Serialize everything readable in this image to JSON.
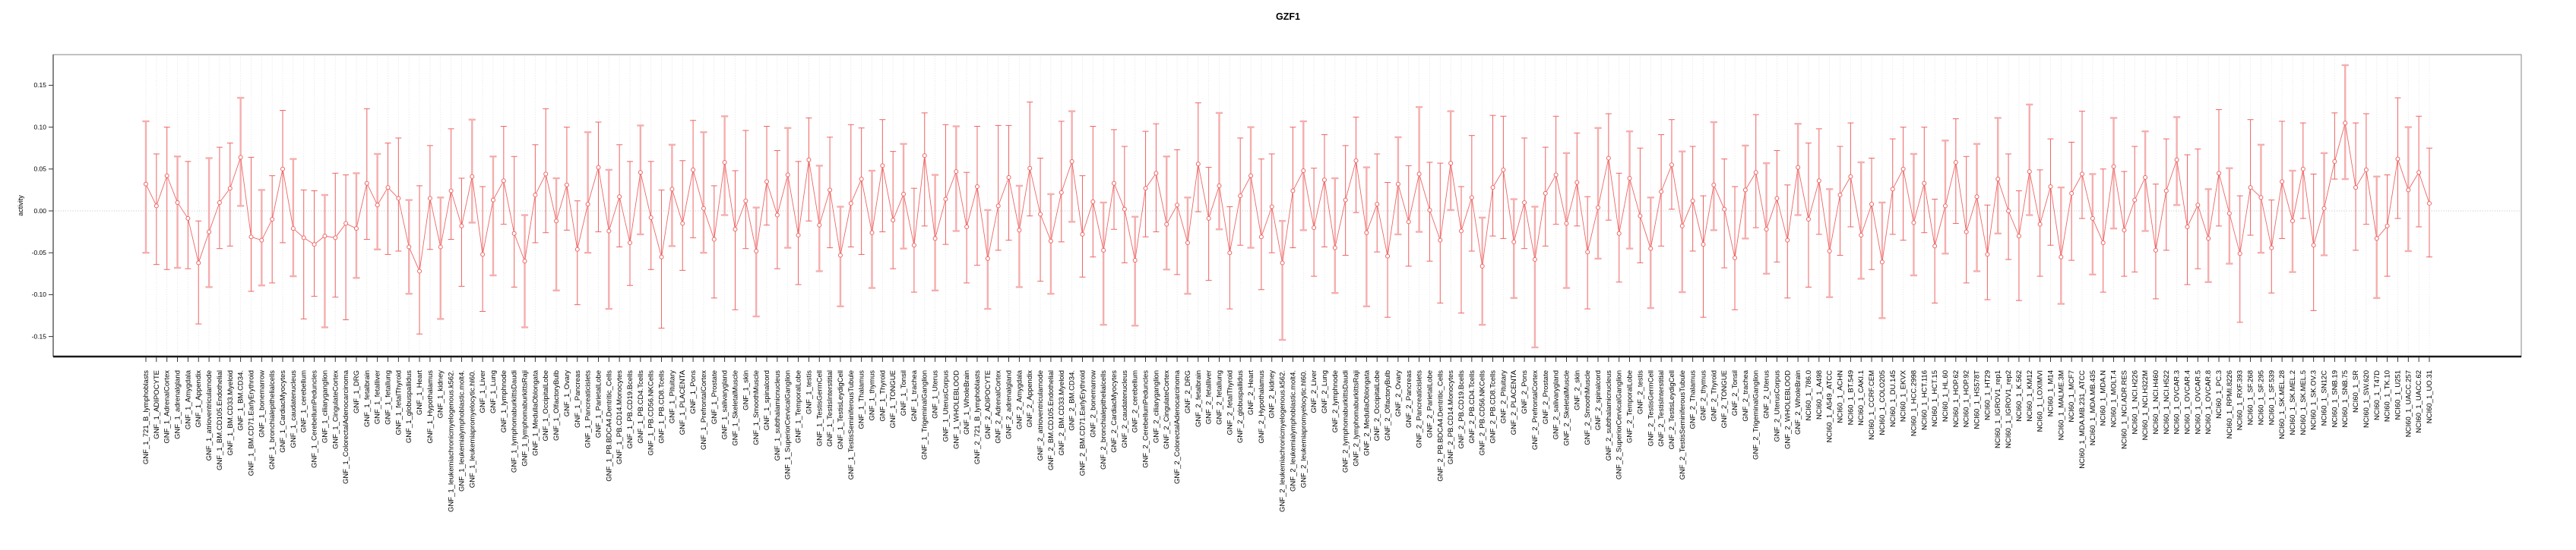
{
  "title": "GZF1",
  "chart_data": {
    "type": "line",
    "subtype": "points-with-error-bars",
    "title": "GZF1",
    "xlabel": "",
    "ylabel": "activity",
    "ylim": [
      -0.175,
      0.187
    ],
    "ytick_labels": [
      "0.15",
      "0.10",
      "0.05",
      "0.00",
      "-0.05",
      "-0.10",
      "-0.15"
    ],
    "ytick_values": [
      0.15,
      0.1,
      0.05,
      0.0,
      -0.05,
      -0.1,
      -0.15
    ],
    "grid": "vertical dotted gridline per category; horizontal dotted line at 0",
    "legend": "none",
    "point_color": "#ee6565",
    "line_color": "#ee6565",
    "errorbar_colors": [
      "#ee6565",
      "#f5aeae"
    ],
    "gridline_color": "#dcdcdc",
    "zeroline_color": "#c0c0c0",
    "categories": [
      "GNF_1_721_B_lymphoblasts",
      "GNF_1_ADIPOCYTE",
      "GNF_1_AdrenalCortex",
      "GNF_1_adrenalgland",
      "GNF_1_Amygdala",
      "GNF_1_Appendix",
      "GNF_1_atrioventricularnode",
      "GNF_1_BM.CD105.Endothelial",
      "GNF_1_BM.CD33.Myeloid",
      "GNF_1_BM.CD34.",
      "GNF_1_BM.CD71.EarlyErythroid",
      "GNF_1_bonemarrow",
      "GNF_1_bronchialepithelialcells",
      "GNF_1_CardiacMyocytes",
      "GNF_1_caudatenucleus",
      "GNF_1_cerebellum",
      "GNF_1_CerebellumPeduncles",
      "GNF_1_ciliaryganglion",
      "GNF_1_CingulateCortex",
      "GNF_1_ColorectalAdenocarcinoma",
      "GNF_1_DRG",
      "GNF_1_fetalbrain",
      "GNF_1_fetalliver",
      "GNF_1_fetallung",
      "GNF_1_fetalThyroid",
      "GNF_1_globuspallidus",
      "GNF_1_Heart",
      "GNF_1_Hypothalamus",
      "GNF_1_kidney",
      "GNF_1_leukemiachronicmyelogenous.k562.",
      "GNF_1_leukemialymphoblastic.molt4.",
      "GNF_1_leukemiapromyelocytic.hl60.",
      "GNF_1_Liver",
      "GNF_1_Lung",
      "GNF_1_lymphnode",
      "GNF_1_lymphomaburkittsDaudi",
      "GNF_1_lymphomaburkittsRaji",
      "GNF_1_MedullaOblongata",
      "GNF_1_OccipitalLobe",
      "GNF_1_OlfactoryBulb",
      "GNF_1_Ovary",
      "GNF_1_Pancreas",
      "GNF_1_Pancreaticislets",
      "GNF_1_ParietalLobe",
      "GNF_1_PB.BDCA4.Dentritic_Cells",
      "GNF_1_PB.CD14.Monocytes",
      "GNF_1_PB.CD19.Bcells",
      "GNF_1_PB.CD4.Tcells",
      "GNF_1_PB.CD56.NKCells",
      "GNF_1_PB.CD8.Tcells",
      "GNF_1_Pituitary",
      "GNF_1_PLACENTA",
      "GNF_1_Pons",
      "GNF_1_PrefrontalCortex",
      "GNF_1_Prostate",
      "GNF_1_salivarygland",
      "GNF_1_SkeletalMuscle",
      "GNF_1_skin",
      "GNF_1_SmoothMuscle",
      "GNF_1_spinalcord",
      "GNF_1_subthalamicnucleus",
      "GNF_1_SuperiorCervicalGanglion",
      "GNF_1_TemporalLobe",
      "GNF_1_testis",
      "GNF_1_TestisGermCell",
      "GNF_1_TestisInterstitial",
      "GNF_1_TestisLeydigCell",
      "GNF_1_TestisSeminiferousTubule",
      "GNF_1_Thalamus",
      "GNF_1_thymus",
      "GNF_1_Thyroid",
      "GNF_1_TONGUE",
      "GNF_1_Tonsil",
      "GNF_1_trachea",
      "GNF_1_TrigeminalGanglion",
      "GNF_1_Uterus",
      "GNF_1_UterusCorpus",
      "GNF_1_WHOLEBLOOD",
      "GNF_1_WholeBrain",
      "GNF_2_721_B_lymphoblasts",
      "GNF_2_ADIPOCYTE",
      "GNF_2_AdrenalCortex",
      "GNF_2_adrenalgland",
      "GNF_2_Amygdala",
      "GNF_2_Appendix",
      "GNF_2_atrioventricularnode",
      "GNF_2_BM.CD105.Endothelial",
      "GNF_2_BM.CD33.Myeloid",
      "GNF_2_BM.CD34.",
      "GNF_2_BM.CD71.EarlyErythroid",
      "GNF_2_bonemarrow",
      "GNF_2_bronchialepithelialcells",
      "GNF_2_CardiacMyocytes",
      "GNF_2_caudatenucleus",
      "GNF_2_cerebellum",
      "GNF_2_CerebellumPeduncles",
      "GNF_2_ciliaryganglion",
      "GNF_2_CingulateCortex",
      "GNF_2_ColorectalAdenocarcinoma",
      "GNF_2_DRG",
      "GNF_2_fetalbrain",
      "GNF_2_fetalliver",
      "GNF_2_fetallung",
      "GNF_2_fetalThyroid",
      "GNF_2_globuspallidus",
      "GNF_2_Heart",
      "GNF_2_Hypothalamus",
      "GNF_2_kidney",
      "GNF_2_leukemiachronicmyelogenous.k562.",
      "GNF_2_leukemialymphoblastic.molt4.",
      "GNF_2_leukemiapromyelocytic.hl60.",
      "GNF_2_Liver",
      "GNF_2_Lung",
      "GNF_2_lymphnode",
      "GNF_2_lymphomaburkittsDaudi",
      "GNF_2_lymphomaburkittsRaji",
      "GNF_2_MedullaOblongata",
      "GNF_2_OccipitalLobe",
      "GNF_2_OlfactoryBulb",
      "GNF_2_Ovary",
      "GNF_2_Pancreas",
      "GNF_2_Pancreaticislets",
      "GNF_2_ParietalLobe",
      "GNF_2_PB.BDCA4.Dentritic_Cells",
      "GNF_2_PB.CD14.Monocytes",
      "GNF_2_PB.CD19.Bcells",
      "GNF_2_PB.CD4.Tcells",
      "GNF_2_PB.CD56.NKCells",
      "GNF_2_PB.CD8.Tcells",
      "GNF_2_Pituitary",
      "GNF_2_PLACENTA",
      "GNF_2_Pons",
      "GNF_2_PrefrontalCortex",
      "GNF_2_Prostate",
      "GNF_2_salivarygland",
      "GNF_2_SkeletalMuscle",
      "GNF_2_skin",
      "GNF_2_SmoothMuscle",
      "GNF_2_spinalcord",
      "GNF_2_subthalamicnucleus",
      "GNF_2_SuperiorCervicalGanglion",
      "GNF_2_TemporalLobe",
      "GNF_2_testis",
      "GNF_2_TestisGermCell",
      "GNF_2_TestisInterstitial",
      "GNF_2_TestisLeydigCell",
      "GNF_2_TestisSeminiferousTubule",
      "GNF_2_Thalamus",
      "GNF_2_thymus",
      "GNF_2_Thyroid",
      "GNF_2_TONGUE",
      "GNF_2_Tonsil",
      "GNF_2_trachea",
      "GNF_2_TrigeminalGanglion",
      "GNF_2_Uterus",
      "GNF_2_UterusCorpus",
      "GNF_2_WHOLEBLOOD",
      "GNF_2_WholeBrain",
      "NCI60_1_786.0",
      "NCI60_1_A498",
      "NCI60_1_A549_ATCC",
      "NCI60_1_ACHN",
      "NCI60_1_BT.549",
      "NCI60_1_CAKI.1",
      "NCI60_1_CCRF.CEM",
      "NCI60_1_COLO205",
      "NCI60_1_DU.145",
      "NCI60_1_EKVX",
      "NCI60_1_HCC.2998",
      "NCI60_1_HCT.116",
      "NCI60_1_HCT.15",
      "NCI60_1_HL.60",
      "NCI60_1_HOP.62",
      "NCI60_1_HOP.92",
      "NCI60_1_HS578T",
      "NCI60_1_HT29",
      "NCI60_1_IGROV1_rep1",
      "NCI60_1_IGROV1_rep2",
      "NCI60_1_K.562",
      "NCI60_1_KM12",
      "NCI60_1_LOXIMVI",
      "NCI60_1_M14",
      "NCI60_1_MALME.3M",
      "NCI60_1_MCF7",
      "NCI60_1_MDA.MB.231_ATCC",
      "NCI60_1_MDA.MB.435",
      "NCI60_1_MDA.N",
      "NCI60_1_MOLT.4",
      "NCI60_1_NCI.ADR.RES",
      "NCI60_1_NCI.H226",
      "NCI60_1_NCI.H322M",
      "NCI60_1_NCI.H460",
      "NCI60_1_NCI.H522",
      "NCI60_1_OVCAR.3",
      "NCI60_1_OVCAR.4",
      "NCI60_1_OVCAR.5",
      "NCI60_1_OVCAR.8",
      "NCI60_1_PC.3",
      "NCI60_1_RPMI.8226",
      "NCI60_1_RXF.393",
      "NCI60_1_SF.268",
      "NCI60_1_SF.295",
      "NCI60_1_SF.539",
      "NCI60_1_SK.MEL.28",
      "NCI60_1_SK.MEL.2",
      "NCI60_1_SK.MEL.5",
      "NCI60_1_SK.OV.3",
      "NCI60_1_SN12C",
      "NCI60_1_SNB.19",
      "NCI60_1_SNB.75",
      "NCI60_1_SR",
      "NCI60_1_SW.620",
      "NCI60_1_T47D",
      "NCI60_1_TK.10",
      "NCI60_1_U251",
      "NCI60_1_UACC.257",
      "NCI60_1_UACC.62",
      "NCI60_1_UO.31"
    ],
    "series": [
      {
        "name": "activity",
        "values": [
          0.032,
          0.006,
          0.042,
          0.01,
          -0.009,
          -0.062,
          -0.025,
          0.01,
          0.027,
          0.064,
          -0.031,
          -0.035,
          -0.01,
          0.05,
          -0.021,
          -0.032,
          -0.04,
          -0.03,
          -0.032,
          -0.015,
          -0.021,
          0.033,
          0.007,
          0.028,
          0.015,
          -0.043,
          -0.072,
          0.015,
          -0.043,
          0.024,
          -0.018,
          0.041,
          -0.052,
          0.013,
          0.036,
          -0.027,
          -0.06,
          0.019,
          0.044,
          -0.012,
          0.031,
          -0.046,
          0.008,
          0.052,
          -0.024,
          0.017,
          -0.038,
          0.046,
          -0.008,
          -0.055,
          0.026,
          -0.015,
          0.049,
          0.003,
          -0.034,
          0.058,
          -0.022,
          0.012,
          -0.048,
          0.035,
          -0.005,
          0.043,
          -0.029,
          0.061,
          -0.017,
          0.025,
          -0.053,
          0.009,
          0.038,
          -0.026,
          0.054,
          -0.011,
          0.02,
          -0.041,
          0.066,
          -0.033,
          0.014,
          0.047,
          -0.019,
          0.029,
          -0.057,
          0.006,
          0.04,
          -0.023,
          0.051,
          -0.004,
          -0.036,
          0.022,
          0.059,
          -0.028,
          0.011,
          -0.047,
          0.033,
          0.002,
          -0.059,
          0.027,
          0.045,
          -0.016,
          0.007,
          -0.038,
          0.056,
          -0.009,
          0.03,
          -0.05,
          0.018,
          0.042,
          -0.031,
          0.005,
          -0.062,
          0.024,
          0.048,
          -0.02,
          0.037,
          -0.044,
          0.013,
          0.06,
          -0.026,
          0.008,
          -0.054,
          0.032,
          -0.013,
          0.044,
          0.001,
          -0.035,
          0.057,
          -0.024,
          0.016,
          -0.066,
          0.028,
          0.049,
          -0.037,
          0.01,
          -0.058,
          0.021,
          0.043,
          -0.015,
          0.034,
          -0.049,
          0.004,
          0.063,
          -0.027,
          0.039,
          -0.006,
          -0.045,
          0.023,
          0.055,
          -0.018,
          0.012,
          -0.04,
          0.031,
          0.002,
          -0.056,
          0.025,
          0.046,
          -0.022,
          0.015,
          -0.035,
          0.052,
          -0.01,
          0.036,
          -0.048,
          0.019,
          0.041,
          -0.029,
          0.008,
          -0.061,
          0.026,
          0.05,
          -0.014,
          0.033,
          -0.042,
          0.006,
          0.058,
          -0.025,
          0.017,
          -0.052,
          0.038,
          0.0,
          -0.03,
          0.047,
          -0.016,
          0.029,
          -0.055,
          0.021,
          0.044,
          -0.009,
          -0.038,
          0.053,
          -0.023,
          0.013,
          0.04,
          -0.047,
          0.024,
          0.061,
          -0.019,
          0.007,
          -0.033,
          0.045,
          -0.003,
          -0.051,
          0.028,
          0.016,
          -0.044,
          0.035,
          -0.012,
          0.05,
          -0.041,
          0.003,
          0.059,
          0.105,
          0.028,
          0.049,
          -0.033,
          -0.018,
          0.062,
          0.025,
          0.046,
          0.009
        ],
        "err_up": [
          0.075,
          0.062,
          0.058,
          0.055,
          0.068,
          0.05,
          0.088,
          0.066,
          0.054,
          0.071,
          0.095,
          0.06,
          0.052,
          0.07,
          0.083,
          0.057,
          0.064,
          0.049,
          0.077,
          0.058,
          0.066,
          0.089,
          0.061,
          0.053,
          0.072,
          0.056,
          0.102,
          0.063,
          0.059,
          0.074,
          0.057,
          0.068,
          0.081,
          0.052,
          0.065,
          0.092,
          0.055,
          0.06,
          0.078,
          0.051,
          0.069,
          0.058,
          0.086,
          0.054,
          0.073,
          0.062,
          0.097,
          0.056,
          0.067,
          0.08,
          0.053,
          0.075,
          0.059,
          0.091,
          0.064,
          0.055,
          0.07,
          0.084,
          0.052,
          0.066,
          0.077,
          0.056,
          0.088,
          0.05,
          0.071,
          0.063,
          0.058,
          0.094,
          0.061,
          0.074,
          0.055,
          0.082,
          0.06,
          0.068,
          0.051,
          0.076,
          0.089,
          0.054,
          0.065,
          0.072,
          0.058,
          0.096,
          0.062,
          0.053,
          0.079,
          0.067,
          0.056,
          0.085,
          0.06,
          0.07,
          0.09,
          0.057,
          0.064,
          0.075,
          0.052,
          0.068,
          0.059,
          0.081,
          0.066,
          0.054,
          0.073,
          0.061,
          0.087,
          0.055,
          0.069,
          0.058,
          0.093,
          0.063,
          0.05,
          0.076,
          0.059,
          0.071,
          0.054,
          0.083,
          0.065,
          0.052,
          0.078,
          0.06,
          0.088,
          0.056,
          0.067,
          0.08,
          0.057,
          0.092,
          0.062,
          0.053,
          0.074,
          0.058,
          0.086,
          0.064,
          0.051,
          0.077,
          0.063,
          0.055,
          0.07,
          0.084,
          0.059,
          0.066,
          0.095,
          0.053,
          0.072,
          0.056,
          0.081,
          0.061,
          0.068,
          0.054,
          0.089,
          0.065,
          0.058,
          0.075,
          0.06,
          0.085,
          0.053,
          0.069,
          0.079,
          0.057,
          0.066,
          0.052,
          0.091,
          0.062,
          0.074,
          0.058,
          0.064,
          0.087,
          0.055,
          0.071,
          0.06,
          0.05,
          0.082,
          0.067,
          0.056,
          0.078,
          0.052,
          0.09,
          0.063,
          0.059,
          0.073,
          0.068,
          0.054,
          0.08,
          0.065,
          0.057,
          0.083,
          0.061,
          0.075,
          0.053,
          0.088,
          0.058,
          0.07,
          0.064,
          0.055,
          0.079,
          0.062,
          0.051,
          0.086,
          0.067,
          0.059,
          0.076,
          0.054,
          0.069,
          0.081,
          0.063,
          0.057,
          0.072,
          0.06,
          0.055,
          0.085,
          0.066,
          0.058,
          0.069,
          0.077,
          0.067,
          0.074,
          0.061,
          0.073,
          0.075,
          0.067,
          0.066
        ],
        "err_dn": [
          0.082,
          0.07,
          0.112,
          0.078,
          0.06,
          0.073,
          0.066,
          0.055,
          0.069,
          0.058,
          0.065,
          0.054,
          0.076,
          0.088,
          0.057,
          0.097,
          0.062,
          0.109,
          0.071,
          0.115,
          0.059,
          0.067,
          0.053,
          0.08,
          0.063,
          0.056,
          0.075,
          0.061,
          0.086,
          0.058,
          0.072,
          0.055,
          0.068,
          0.09,
          0.052,
          0.064,
          0.079,
          0.057,
          0.07,
          0.083,
          0.054,
          0.066,
          0.058,
          0.077,
          0.093,
          0.06,
          0.051,
          0.074,
          0.062,
          0.085,
          0.068,
          0.056,
          0.081,
          0.053,
          0.07,
          0.063,
          0.096,
          0.057,
          0.078,
          0.052,
          0.064,
          0.087,
          0.059,
          0.073,
          0.055,
          0.069,
          0.061,
          0.052,
          0.09,
          0.066,
          0.079,
          0.058,
          0.065,
          0.056,
          0.084,
          0.062,
          0.054,
          0.071,
          0.067,
          0.094,
          0.06,
          0.053,
          0.075,
          0.068,
          0.057,
          0.08,
          0.063,
          0.059,
          0.072,
          0.051,
          0.066,
          0.089,
          0.055,
          0.064,
          0.078,
          0.058,
          0.07,
          0.054,
          0.083,
          0.061,
          0.057,
          0.074,
          0.052,
          0.067,
          0.059,
          0.086,
          0.063,
          0.055,
          0.092,
          0.068,
          0.071,
          0.058,
          0.08,
          0.054,
          0.066,
          0.062,
          0.088,
          0.057,
          0.073,
          0.06,
          0.053,
          0.069,
          0.061,
          0.075,
          0.056,
          0.098,
          0.064,
          0.07,
          0.058,
          0.082,
          0.067,
          0.055,
          0.105,
          0.063,
          0.059,
          0.077,
          0.052,
          0.068,
          0.061,
          0.074,
          0.058,
          0.084,
          0.056,
          0.071,
          0.065,
          0.053,
          0.079,
          0.06,
          0.087,
          0.054,
          0.07,
          0.062,
          0.058,
          0.066,
          0.053,
          0.076,
          0.069,
          0.057,
          0.081,
          0.064,
          0.055,
          0.072,
          0.06,
          0.052,
          0.078,
          0.067,
          0.054,
          0.085,
          0.063,
          0.059,
          0.068,
          0.057,
          0.073,
          0.061,
          0.089,
          0.054,
          0.065,
          0.058,
          0.077,
          0.052,
          0.062,
          0.07,
          0.056,
          0.08,
          0.053,
          0.067,
          0.059,
          0.074,
          0.055,
          0.086,
          0.064,
          0.058,
          0.071,
          0.054,
          0.069,
          0.076,
          0.052,
          0.063,
          0.06,
          0.082,
          0.057,
          0.066,
          0.054,
          0.068,
          0.061,
          0.059,
          0.078,
          0.056,
          0.021,
          0.067,
          0.075,
          0.065,
          0.071,
          0.06,
          0.071,
          0.073,
          0.065,
          0.064
        ]
      }
    ]
  }
}
